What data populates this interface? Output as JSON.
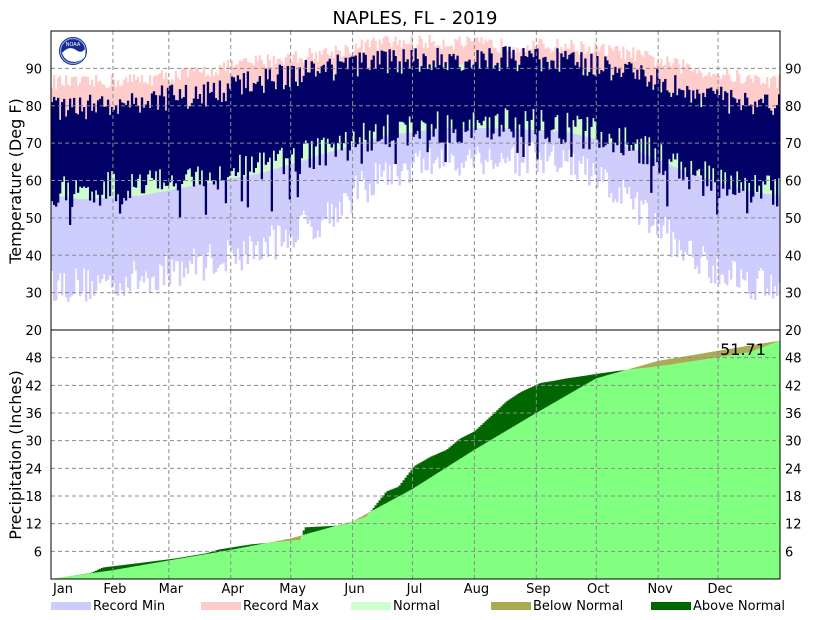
{
  "chart_data": {
    "title": "NAPLES, FL - 2019",
    "months": [
      "Jan",
      "Feb",
      "Mar",
      "Apr",
      "May",
      "Jun",
      "Jul",
      "Aug",
      "Sep",
      "Oct",
      "Nov",
      "Dec"
    ],
    "temperature": {
      "type": "area",
      "ylabel": "Temperature (Deg F)",
      "ylim": [
        20,
        100
      ],
      "yticks": [
        30,
        40,
        50,
        60,
        70,
        80,
        90
      ],
      "series_names": [
        "Record Min",
        "Record Max",
        "Normal"
      ],
      "monthly": {
        "record_min": [
          32,
          34,
          38,
          42,
          50,
          62,
          66,
          66,
          65,
          55,
          40,
          33
        ],
        "record_max": [
          86,
          87,
          89,
          92,
          94,
          97,
          97,
          96,
          96,
          94,
          90,
          87
        ],
        "normal_low": [
          55,
          56,
          59,
          62,
          67,
          72,
          74,
          74,
          73,
          69,
          62,
          57
        ],
        "normal_high": [
          76,
          78,
          80,
          84,
          88,
          90,
          91,
          91,
          90,
          87,
          82,
          78
        ],
        "observed_low": [
          58,
          60,
          62,
          64,
          69,
          74,
          75,
          76,
          75,
          71,
          63,
          58
        ],
        "observed_high": [
          79,
          81,
          82,
          86,
          89,
          91,
          92,
          92,
          91,
          89,
          83,
          79
        ]
      }
    },
    "precipitation": {
      "type": "area",
      "ylabel": "Precipitation (Inches)",
      "ylim": [
        0,
        54
      ],
      "yticks": [
        6,
        12,
        18,
        24,
        30,
        36,
        42,
        48
      ],
      "top_label": "20",
      "series_names": [
        "Normal",
        "Below Normal",
        "Above Normal"
      ],
      "annotation": "51.71",
      "normal_cumulative": {
        "day": [
          0,
          31,
          59,
          90,
          120,
          151,
          181,
          212,
          243,
          273,
          304,
          334,
          365
        ],
        "value": [
          0,
          1.9,
          4.0,
          6.3,
          8.8,
          12.5,
          19.5,
          28.0,
          36.0,
          43.5,
          47.3,
          49.5,
          51.71
        ]
      },
      "observed_cumulative": {
        "day": [
          0,
          20,
          26,
          45,
          63,
          78,
          84,
          100,
          125,
          127,
          145,
          158,
          168,
          174,
          182,
          190,
          198,
          205,
          212,
          222,
          228,
          235,
          245,
          252,
          258,
          266,
          275,
          285,
          300,
          312,
          330,
          350,
          365
        ],
        "value": [
          0,
          1.3,
          2.5,
          3.5,
          4.5,
          5.6,
          6.4,
          7.5,
          8.5,
          11.2,
          11.6,
          13.5,
          19.0,
          20.0,
          24.5,
          26.5,
          28.0,
          30.5,
          32.0,
          36.0,
          38.5,
          40.5,
          42.5,
          43.0,
          43.5,
          44.0,
          44.6,
          45.2,
          45.9,
          46.6,
          47.8,
          49.2,
          51.71
        ]
      }
    },
    "legend": [
      {
        "label": "Record Min",
        "color": "#ccccff"
      },
      {
        "label": "Record Max",
        "color": "#ffcccc"
      },
      {
        "label": "Normal",
        "color": "#ccffcc"
      },
      {
        "label": "Below Normal",
        "color": "#aaaa55"
      },
      {
        "label": "Above Normal",
        "color": "#006600"
      }
    ],
    "colors": {
      "record_min": "#ccccff",
      "record_max": "#ffcccc",
      "normal_band": "#ccffcc",
      "observed_temp": "#000066",
      "precip_normal": "#80ff80",
      "precip_below": "#aaaa55",
      "precip_above": "#006600"
    },
    "logo_text": "NOAA"
  }
}
